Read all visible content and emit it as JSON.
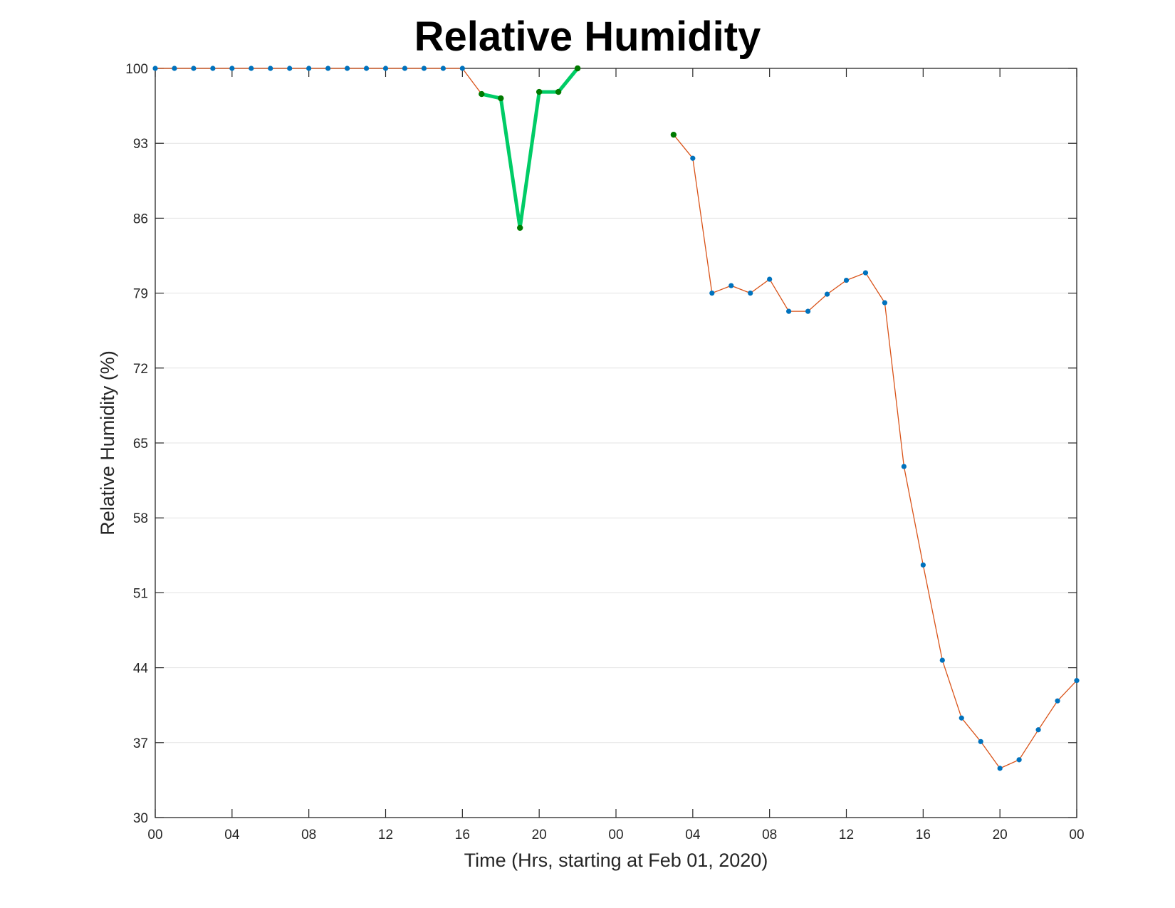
{
  "chart_data": {
    "type": "line",
    "title": "Relative Humidity",
    "xlabel": "Time (Hrs, starting at Feb 01, 2020)",
    "ylabel": "Relative Humidity (%)",
    "x_unit": "hours",
    "xlim": [
      0,
      48
    ],
    "ylim": [
      30,
      100
    ],
    "yticks": [
      30,
      37,
      44,
      51,
      58,
      65,
      72,
      79,
      86,
      93,
      100
    ],
    "xtick_hours": [
      0,
      4,
      8,
      12,
      16,
      20,
      24,
      28,
      32,
      36,
      40,
      44,
      48
    ],
    "xtick_labels": [
      "00",
      "04",
      "08",
      "12",
      "16",
      "20",
      "00",
      "04",
      "08",
      "12",
      "16",
      "20",
      "00"
    ],
    "grid": "horizontal",
    "colors": {
      "line": "#D95319",
      "marker": "#0072BD",
      "highlight_line": "#00CC66",
      "highlight_marker": "#007A00",
      "grid": "#e3e3e3",
      "axis": "#262626"
    },
    "series": [
      {
        "x": [
          0,
          1,
          2,
          3,
          4,
          5,
          6,
          7,
          8,
          9,
          10,
          11,
          12,
          13,
          14,
          15,
          16,
          17,
          18,
          19,
          20,
          21,
          22
        ],
        "y": [
          100,
          100,
          100,
          100,
          100,
          100,
          100,
          100,
          100,
          100,
          100,
          100,
          100,
          100,
          100,
          100,
          100,
          97.6,
          97.2,
          85.1,
          97.8,
          97.8,
          100
        ]
      },
      {
        "x": [
          27,
          28,
          29,
          30,
          31,
          32,
          33,
          34,
          35,
          36,
          37,
          38,
          39,
          40,
          41,
          42,
          43,
          44,
          45,
          46,
          47,
          48
        ],
        "y": [
          93.8,
          91.6,
          79,
          79.7,
          79,
          80.3,
          77.3,
          77.3,
          78.9,
          80.2,
          80.9,
          78.1,
          62.8,
          53.6,
          44.7,
          39.3,
          37.1,
          34.6,
          35.4,
          38.2,
          40.9,
          42.8
        ]
      }
    ],
    "highlight": {
      "x": [
        17,
        18,
        19,
        20,
        21,
        22
      ],
      "y": [
        97.6,
        97.2,
        85.1,
        97.8,
        97.8,
        100
      ]
    },
    "highlight_points": {
      "x": [
        17,
        18,
        19,
        20,
        21,
        22,
        27
      ],
      "y": [
        97.6,
        97.2,
        85.1,
        97.8,
        97.8,
        100,
        93.8
      ]
    }
  }
}
